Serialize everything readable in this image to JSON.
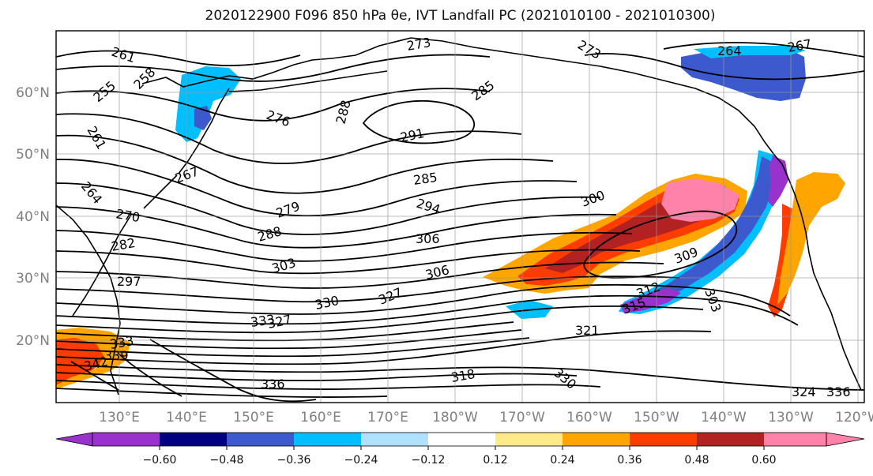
{
  "title": "2020122900 F096 850 hPa θe, IVT Landfall PC (2021010100 - 2021010300)",
  "lon_ticks": [
    "130°E",
    "140°E",
    "150°E",
    "160°E",
    "170°E",
    "180°W",
    "170°W",
    "160°W",
    "150°W",
    "140°W",
    "130°W",
    "120°W"
  ],
  "lat_ticks": [
    "60°N",
    "50°N",
    "40°N",
    "30°N",
    "20°N"
  ],
  "colorbar": {
    "tick_labels": [
      "−0.60",
      "−0.48",
      "−0.36",
      "−0.24",
      "−0.12",
      "0.12",
      "0.24",
      "0.36",
      "0.48",
      "0.60"
    ],
    "colors": [
      "#9932cc",
      "#000080",
      "#3c5acd",
      "#00bfff",
      "#b0e2ff",
      "#ffffff",
      "#ffea8a",
      "#ffa500",
      "#ff3c00",
      "#b22222",
      "#ff82ab"
    ]
  },
  "contour_labels": [
    "261",
    "258",
    "255",
    "261",
    "264",
    "267",
    "270",
    "273",
    "276",
    "279",
    "282",
    "285",
    "288",
    "288",
    "291",
    "294",
    "297",
    "300",
    "303",
    "303",
    "306",
    "306",
    "309",
    "312",
    "315",
    "318",
    "321",
    "324",
    "327",
    "327",
    "330",
    "330",
    "333",
    "333",
    "336",
    "336",
    "339",
    "342",
    "264",
    "267",
    "273",
    "285"
  ],
  "land_color": "#000000"
}
